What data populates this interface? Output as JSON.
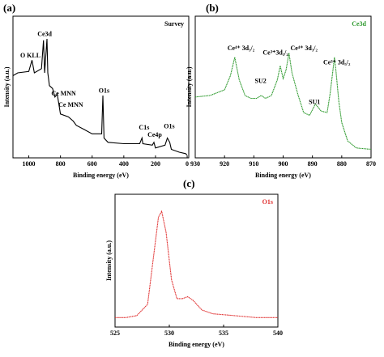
{
  "chart_data": [
    {
      "type": "line",
      "panel_label": "(a)",
      "x_label": "Binding energy (eV)",
      "y_label": "Intensity (a.u.)",
      "xlim": [
        1100,
        -10
      ],
      "xticks": [
        1000,
        800,
        600,
        400,
        200,
        0
      ],
      "ylim": [
        0,
        100
      ],
      "x": [
        1100,
        1070,
        1000,
        980,
        965,
        920,
        907,
        900,
        885,
        880,
        870,
        850,
        835,
        820,
        800,
        750,
        720,
        700,
        650,
        600,
        540,
        532,
        525,
        500,
        400,
        300,
        285,
        280,
        220,
        210,
        200,
        140,
        125,
        110,
        100,
        50,
        10,
        0
      ],
      "series": [
        {
          "name": "Survey",
          "color": "#000000",
          "values": [
            58,
            60,
            61,
            69,
            60,
            63,
            83,
            60,
            84,
            60,
            51,
            49,
            43,
            45,
            31,
            29,
            26,
            23,
            20,
            17,
            17,
            44,
            14,
            11,
            10,
            10,
            14,
            10,
            9,
            11,
            7,
            9,
            14,
            11,
            6,
            4,
            3,
            2
          ]
        }
      ],
      "annotations": [
        {
          "text": "O KLL",
          "x": 990,
          "y": 72
        },
        {
          "text": "Ce3d",
          "x": 900,
          "y": 87
        },
        {
          "text": "Ce MNN",
          "x": 780,
          "y": 45
        },
        {
          "text": "Ce MNN",
          "x": 735,
          "y": 37
        },
        {
          "text": "O1s",
          "x": 525,
          "y": 47
        },
        {
          "text": "C1s",
          "x": 272,
          "y": 21
        },
        {
          "text": "Ce4p",
          "x": 205,
          "y": 16
        },
        {
          "text": "O1s",
          "x": 113,
          "y": 22
        }
      ]
    },
    {
      "type": "line",
      "panel_label": "(b)",
      "x_label": "Binding energy (eV)",
      "y_label": "Intensity (a.u.)",
      "xlim": [
        930,
        870
      ],
      "xticks": [
        930,
        920,
        910,
        900,
        890,
        880,
        870
      ],
      "ylim": [
        0,
        100
      ],
      "x": [
        930,
        925,
        920,
        918,
        916.5,
        915,
        913,
        911,
        909,
        907.5,
        906,
        904,
        902,
        901,
        900,
        899,
        898,
        897,
        895,
        893,
        891,
        889,
        887,
        885,
        884,
        883,
        882.5,
        882,
        881,
        880,
        878,
        875,
        870
      ],
      "series": [
        {
          "name": "Ce3d",
          "color": "#2e9a2e",
          "values": [
            43,
            44,
            48,
            58,
            71,
            55,
            44,
            42,
            42,
            44,
            42,
            44,
            55,
            65,
            56,
            62,
            74,
            60,
            45,
            32,
            30,
            38,
            33,
            32,
            45,
            62,
            71,
            62,
            40,
            25,
            12,
            7,
            6
          ]
        }
      ],
      "annotations": [
        {
          "text": "Ce⁴⁺ 3d₃/₂",
          "x": 914.4,
          "y": 77
        },
        {
          "text": "SU2",
          "x": 907.7,
          "y": 54
        },
        {
          "text": "Ce³⁺3d₃/₂",
          "x": 902.6,
          "y": 74
        },
        {
          "text": "Ce⁴⁺ 3d₃/₂",
          "x": 892.9,
          "y": 77
        },
        {
          "text": "SU1",
          "x": 889.3,
          "y": 39
        },
        {
          "text": "Ce³⁺ 3d₅/₂",
          "x": 881.7,
          "y": 67
        }
      ]
    },
    {
      "type": "line",
      "panel_label": "(c)",
      "x_label": "Binding energy (eV)",
      "y_label": "Intensity (a.u.)",
      "xlim": [
        525,
        540
      ],
      "xticks": [
        525,
        530,
        535,
        540
      ],
      "ylim": [
        0,
        70
      ],
      "x": [
        525,
        526,
        527,
        528,
        528.5,
        529,
        529.3,
        529.7,
        530.2,
        530.7,
        531.2,
        531.7,
        532.2,
        533,
        534,
        536,
        538,
        540
      ],
      "series": [
        {
          "name": "O1s",
          "color": "#e03030",
          "values": [
            5,
            5,
            6,
            12,
            35,
            58,
            61,
            50,
            25,
            15,
            15,
            16,
            14,
            9,
            7,
            6,
            5,
            5
          ]
        }
      ],
      "annotations": []
    }
  ]
}
